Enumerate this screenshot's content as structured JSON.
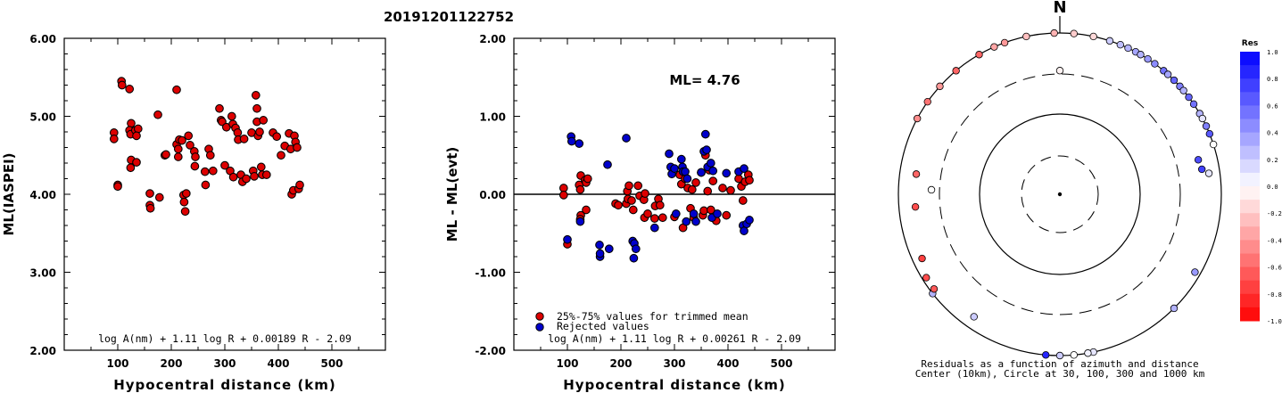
{
  "title": "20191201122752",
  "chart_data": [
    {
      "type": "scatter",
      "ylabel": "ML(IASPEI)",
      "xlabel": "Hypocentral distance (km)",
      "xlim": [
        0,
        600
      ],
      "ylim": [
        2.0,
        6.0
      ],
      "x_ticks": [
        "100",
        "200",
        "300",
        "400",
        "500"
      ],
      "y_ticks": [
        "2.00",
        "3.00",
        "4.00",
        "5.00",
        "6.00"
      ],
      "formula": "log A(nm) + 1.11 log R + 0.00189 R - 2.09",
      "series": [
        {
          "color": "#dd0000",
          "points": [
            [
              93,
              4.79
            ],
            [
              93,
              4.71
            ],
            [
              100,
              4.12
            ],
            [
              100,
              4.1
            ],
            [
              107,
              5.45
            ],
            [
              108,
              5.4
            ],
            [
              122,
              5.35
            ],
            [
              125,
              4.91
            ],
            [
              122,
              4.82
            ],
            [
              124,
              4.77
            ],
            [
              125,
              4.44
            ],
            [
              124,
              4.34
            ],
            [
              133,
              4.82
            ],
            [
              138,
              4.84
            ],
            [
              135,
              4.75
            ],
            [
              135,
              4.41
            ],
            [
              160,
              4.01
            ],
            [
              160,
              3.86
            ],
            [
              161,
              3.82
            ],
            [
              175,
              5.02
            ],
            [
              178,
              3.96
            ],
            [
              188,
              4.5
            ],
            [
              190,
              4.51
            ],
            [
              210,
              5.34
            ],
            [
              210,
              4.64
            ],
            [
              213,
              4.58
            ],
            [
              215,
              4.7
            ],
            [
              213,
              4.48
            ],
            [
              220,
              4.69
            ],
            [
              223,
              3.99
            ],
            [
              224,
              3.9
            ],
            [
              226,
              3.78
            ],
            [
              228,
              4.01
            ],
            [
              232,
              4.75
            ],
            [
              235,
              4.63
            ],
            [
              243,
              4.55
            ],
            [
              244,
              4.36
            ],
            [
              245,
              4.48
            ],
            [
              263,
              4.29
            ],
            [
              264,
              4.12
            ],
            [
              270,
              4.58
            ],
            [
              273,
              4.5
            ],
            [
              278,
              4.3
            ],
            [
              290,
              5.1
            ],
            [
              293,
              4.95
            ],
            [
              295,
              4.93
            ],
            [
              300,
              4.37
            ],
            [
              303,
              4.86
            ],
            [
              310,
              4.3
            ],
            [
              313,
              5.0
            ],
            [
              315,
              4.9
            ],
            [
              316,
              4.22
            ],
            [
              320,
              4.85
            ],
            [
              324,
              4.79
            ],
            [
              325,
              4.7
            ],
            [
              330,
              4.25
            ],
            [
              333,
              4.16
            ],
            [
              336,
              4.71
            ],
            [
              340,
              4.2
            ],
            [
              350,
              4.79
            ],
            [
              353,
              4.3
            ],
            [
              355,
              4.23
            ],
            [
              358,
              5.27
            ],
            [
              360,
              5.1
            ],
            [
              360,
              4.93
            ],
            [
              362,
              4.75
            ],
            [
              365,
              4.8
            ],
            [
              368,
              4.35
            ],
            [
              370,
              4.25
            ],
            [
              372,
              4.95
            ],
            [
              378,
              4.25
            ],
            [
              390,
              4.79
            ],
            [
              397,
              4.74
            ],
            [
              405,
              4.5
            ],
            [
              412,
              4.62
            ],
            [
              420,
              4.78
            ],
            [
              423,
              4.58
            ],
            [
              425,
              4.0
            ],
            [
              428,
              4.05
            ],
            [
              430,
              4.75
            ],
            [
              432,
              4.67
            ],
            [
              435,
              4.6
            ],
            [
              438,
              4.07
            ],
            [
              440,
              4.12
            ]
          ]
        }
      ]
    },
    {
      "type": "scatter",
      "ylabel": "ML - ML(evt)",
      "xlabel": "Hypocentral distance (km)",
      "xlim": [
        0,
        600
      ],
      "ylim": [
        -2.0,
        2.0
      ],
      "x_ticks": [
        "100",
        "200",
        "300",
        "400",
        "500"
      ],
      "y_ticks": [
        "-2.00",
        "-1.00",
        "0.00",
        "1.00",
        "2.00"
      ],
      "annotation": "ML= 4.76",
      "formula": "log A(nm) + 1.11 log R + 0.00261 R - 2.09",
      "legend": [
        "25%-75% values for trimmed mean",
        "Rejected values"
      ],
      "legend_position": "bottom-left",
      "series": [
        {
          "name": "25%-75% values for trimmed mean",
          "color": "#dd0000",
          "points": [
            [
              93,
              0.08
            ],
            [
              93,
              -0.01
            ],
            [
              100,
              -0.64
            ],
            [
              122,
              0.12
            ],
            [
              124,
              0.06
            ],
            [
              125,
              0.24
            ],
            [
              125,
              -0.27
            ],
            [
              124,
              -0.32
            ],
            [
              133,
              0.18
            ],
            [
              135,
              0.15
            ],
            [
              135,
              -0.2
            ],
            [
              138,
              0.2
            ],
            [
              190,
              -0.12
            ],
            [
              195,
              -0.14
            ],
            [
              210,
              -0.12
            ],
            [
              212,
              0.04
            ],
            [
              213,
              -0.06
            ],
            [
              215,
              0.11
            ],
            [
              220,
              -0.08
            ],
            [
              223,
              -0.2
            ],
            [
              232,
              0.11
            ],
            [
              235,
              -0.02
            ],
            [
              243,
              -0.07
            ],
            [
              244,
              -0.3
            ],
            [
              245,
              0.01
            ],
            [
              250,
              -0.25
            ],
            [
              263,
              -0.31
            ],
            [
              264,
              -0.15
            ],
            [
              270,
              -0.06
            ],
            [
              273,
              -0.14
            ],
            [
              278,
              -0.3
            ],
            [
              300,
              -0.29
            ],
            [
              310,
              0.25
            ],
            [
              313,
              0.13
            ],
            [
              316,
              -0.43
            ],
            [
              320,
              0.2
            ],
            [
              325,
              0.08
            ],
            [
              330,
              -0.18
            ],
            [
              333,
              0.06
            ],
            [
              336,
              -0.3
            ],
            [
              340,
              0.15
            ],
            [
              350,
              0.28
            ],
            [
              353,
              -0.27
            ],
            [
              355,
              -0.21
            ],
            [
              358,
              0.5
            ],
            [
              362,
              0.04
            ],
            [
              365,
              0.31
            ],
            [
              368,
              -0.2
            ],
            [
              372,
              0.17
            ],
            [
              378,
              -0.34
            ],
            [
              390,
              0.08
            ],
            [
              397,
              -0.27
            ],
            [
              405,
              0.05
            ],
            [
              420,
              0.2
            ],
            [
              425,
              0.1
            ],
            [
              428,
              -0.08
            ],
            [
              432,
              0.16
            ],
            [
              438,
              0.25
            ],
            [
              440,
              0.18
            ]
          ]
        },
        {
          "name": "Rejected values",
          "color": "#0000cc",
          "points": [
            [
              100,
              -0.58
            ],
            [
              107,
              0.74
            ],
            [
              108,
              0.68
            ],
            [
              122,
              0.65
            ],
            [
              124,
              -0.35
            ],
            [
              160,
              -0.65
            ],
            [
              161,
              -0.8
            ],
            [
              161,
              -0.76
            ],
            [
              175,
              0.38
            ],
            [
              178,
              -0.7
            ],
            [
              210,
              0.72
            ],
            [
              222,
              -0.6
            ],
            [
              225,
              -0.63
            ],
            [
              224,
              -0.82
            ],
            [
              228,
              -0.7
            ],
            [
              263,
              -0.43
            ],
            [
              290,
              0.52
            ],
            [
              293,
              0.35
            ],
            [
              295,
              0.26
            ],
            [
              300,
              0.33
            ],
            [
              303,
              -0.25
            ],
            [
              313,
              0.45
            ],
            [
              315,
              0.35
            ],
            [
              316,
              0.29
            ],
            [
              320,
              0.29
            ],
            [
              322,
              -0.35
            ],
            [
              324,
              0.2
            ],
            [
              336,
              -0.25
            ],
            [
              340,
              -0.35
            ],
            [
              350,
              0.28
            ],
            [
              355,
              0.55
            ],
            [
              358,
              0.77
            ],
            [
              360,
              0.57
            ],
            [
              362,
              0.35
            ],
            [
              368,
              0.4
            ],
            [
              370,
              -0.3
            ],
            [
              372,
              0.3
            ],
            [
              380,
              -0.25
            ],
            [
              397,
              0.27
            ],
            [
              420,
              0.29
            ],
            [
              428,
              -0.4
            ],
            [
              430,
              0.33
            ],
            [
              430,
              -0.47
            ],
            [
              435,
              -0.38
            ],
            [
              440,
              -0.33
            ]
          ]
        }
      ]
    },
    {
      "type": "scatter",
      "subtype": "polar",
      "north_label": "N",
      "caption_line1": "Residuals as a function of azimuth and distance",
      "caption_line2": "Center (10km), Circle at 30, 100, 300 and 1000 km",
      "colorbar_title": "Res",
      "colorbar_ticks": [
        "1.0",
        "0.8",
        "0.6",
        "0.4",
        "0.2",
        "0.0",
        "-0.2",
        "-0.4",
        "-0.6",
        "-0.8",
        "-1.0"
      ],
      "colorbar_range": [
        -1.0,
        1.0
      ],
      "colorbar_colors": {
        "positive": "#0000ff",
        "zero": "#ffffff",
        "negative": "#ff0000"
      },
      "points": [
        [
          358,
          3.19,
          -0.3
        ],
        [
          5,
          3.07,
          -0.2
        ],
        [
          12,
          3.08,
          -0.15
        ],
        [
          18,
          3.15,
          0.2
        ],
        [
          22,
          3.18,
          0.25
        ],
        [
          25,
          3.05,
          0.3
        ],
        [
          28,
          3.17,
          0.35
        ],
        [
          30,
          3.21,
          0.3
        ],
        [
          33,
          3.14,
          0.4
        ],
        [
          36,
          3.16,
          0.45
        ],
        [
          40,
          3.22,
          0.55
        ],
        [
          42,
          3.1,
          0.35
        ],
        [
          45,
          3.18,
          0.6
        ],
        [
          48,
          3.2,
          0.5
        ],
        [
          50,
          3.14,
          0.3
        ],
        [
          53,
          3.27,
          0.6
        ],
        [
          56,
          3.2,
          0.55
        ],
        [
          60,
          3.23,
          0.3
        ],
        [
          62,
          3.18,
          0.1
        ],
        [
          65,
          3.24,
          0.5
        ],
        [
          68,
          3.25,
          0.65
        ],
        [
          72,
          3.2,
          0.0
        ],
        [
          76,
          2.76,
          0.7
        ],
        [
          80,
          2.78,
          0.75
        ],
        [
          82,
          2.86,
          0.1
        ],
        [
          238,
          2.95,
          -0.7
        ],
        [
          245,
          2.88,
          -0.75
        ],
        [
          265,
          2.79,
          -0.7
        ],
        [
          272,
          2.58,
          0.0
        ],
        [
          278,
          2.79,
          -0.6
        ],
        [
          298,
          3.17,
          -0.45
        ],
        [
          305,
          3.04,
          -0.55
        ],
        [
          312,
          3.11,
          -0.4
        ],
        [
          320,
          3.13,
          -0.6
        ],
        [
          330,
          3.06,
          -0.6
        ],
        [
          336,
          3.14,
          -0.35
        ],
        [
          340,
          3.13,
          -0.4
        ],
        [
          348,
          3.04,
          -0.25
        ],
        [
          0,
          2.52,
          -0.05
        ],
        [
          120,
          2.93,
          0.4
        ],
        [
          135,
          3.17,
          0.3
        ],
        [
          168,
          3.15,
          0.1
        ],
        [
          170,
          3.17,
          0.05
        ],
        [
          175,
          3.2,
          0.0
        ],
        [
          180,
          3.22,
          0.2
        ],
        [
          185,
          3.3,
          0.85
        ],
        [
          215,
          2.85,
          0.2
        ],
        [
          232,
          3.0,
          0.3
        ],
        [
          233,
          2.95,
          -0.65
        ]
      ]
    }
  ]
}
